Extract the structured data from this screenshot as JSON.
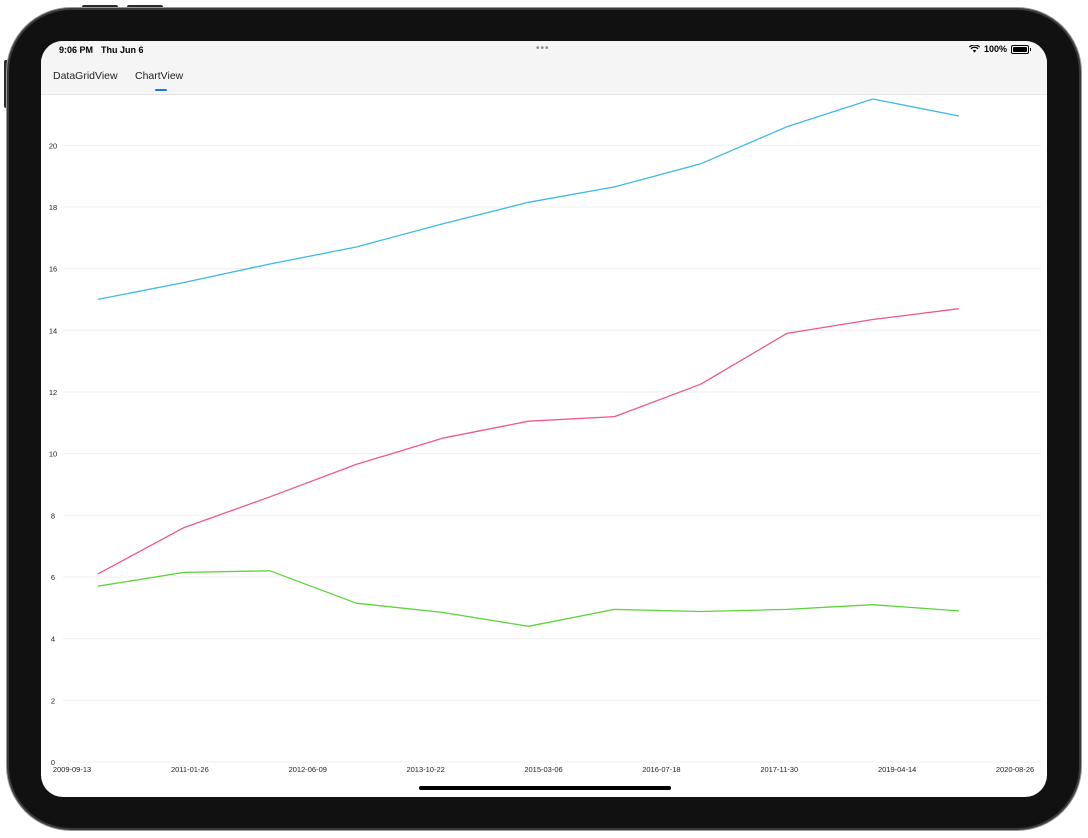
{
  "status_bar": {
    "time": "9:06 PM",
    "date": "Thu Jun 6",
    "battery": "100%",
    "multitask": "•••"
  },
  "tabs": [
    {
      "label": "DataGridView",
      "active": false
    },
    {
      "label": "ChartView",
      "active": true
    }
  ],
  "colors": {
    "accent": "#1a73e8",
    "grid": "#efefef"
  },
  "chart_data": {
    "type": "line",
    "xlabel": "",
    "ylabel": "",
    "ylim": [
      0,
      21.5
    ],
    "y_ticks": [
      0,
      2,
      4,
      6,
      8,
      10,
      12,
      14,
      16,
      18,
      20
    ],
    "x_tick_labels": [
      "2009-09-13",
      "2011-01-26",
      "2012-06-09",
      "2013-10-22",
      "2015-03-06",
      "2016-07-18",
      "2017-11-30",
      "2019-04-14",
      "2020-08-26"
    ],
    "xlim": [
      "2009-09-13",
      "2020-08-26"
    ],
    "grid": true,
    "x": [
      "2010-01-01",
      "2011-01-01",
      "2012-01-01",
      "2013-01-01",
      "2014-01-01",
      "2015-01-01",
      "2016-01-01",
      "2017-01-01",
      "2018-01-01",
      "2019-01-01",
      "2020-01-01"
    ],
    "series": [
      {
        "color": "#3fb8e8",
        "values": [
          15.0,
          15.55,
          16.15,
          16.7,
          17.45,
          18.15,
          18.65,
          19.4,
          20.6,
          21.5,
          20.95
        ]
      },
      {
        "color": "#f0578c",
        "values": [
          6.1,
          7.6,
          8.6,
          9.65,
          10.5,
          11.05,
          11.2,
          12.25,
          13.9,
          14.35,
          14.7
        ]
      },
      {
        "color": "#5cd43a",
        "values": [
          5.7,
          6.15,
          6.2,
          5.15,
          4.85,
          4.4,
          4.95,
          4.88,
          4.95,
          5.1,
          4.9
        ]
      }
    ]
  }
}
